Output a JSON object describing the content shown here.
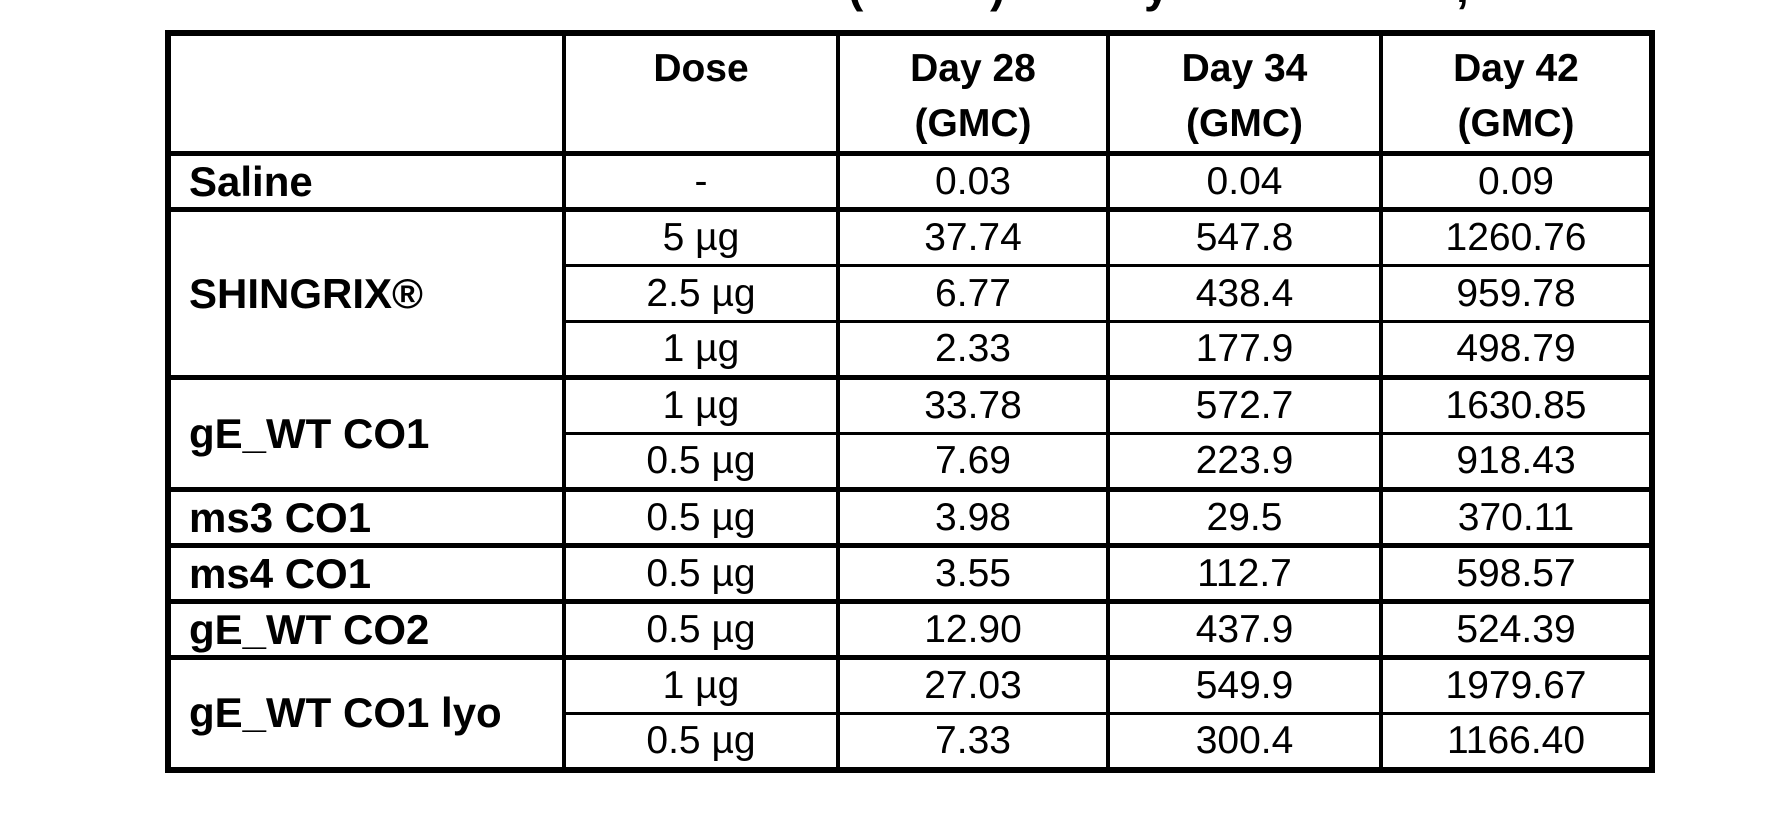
{
  "page": {
    "background_color": "#ffffff",
    "text_color": "#000000",
    "border_color": "#000000"
  },
  "clipped_caption": {
    "fragments": [
      "(",
      ")",
      "y",
      ","
    ]
  },
  "table": {
    "headers": {
      "col0": {
        "line1": "",
        "line2": ""
      },
      "col1": {
        "line1": "Dose",
        "line2": ""
      },
      "col2": {
        "line1": "Day 28",
        "line2": "(GMC)"
      },
      "col3": {
        "line1": "Day 34",
        "line2": "(GMC)"
      },
      "col4": {
        "line1": "Day 42",
        "line2": "(GMC)"
      }
    },
    "groups": [
      {
        "label": "Saline",
        "rows": [
          {
            "dose": "-",
            "day28": "0.03",
            "day34": "0.04",
            "day42": "0.09"
          }
        ]
      },
      {
        "label": "SHINGRIX®",
        "rows": [
          {
            "dose": "5 µg",
            "day28": "37.74",
            "day34": "547.8",
            "day42": "1260.76"
          },
          {
            "dose": "2.5 µg",
            "day28": "6.77",
            "day34": "438.4",
            "day42": "959.78"
          },
          {
            "dose": "1 µg",
            "day28": "2.33",
            "day34": "177.9",
            "day42": "498.79"
          }
        ]
      },
      {
        "label": "gE_WT CO1",
        "rows": [
          {
            "dose": "1 µg",
            "day28": "33.78",
            "day34": "572.7",
            "day42": "1630.85"
          },
          {
            "dose": "0.5 µg",
            "day28": "7.69",
            "day34": "223.9",
            "day42": "918.43"
          }
        ]
      },
      {
        "label": "ms3 CO1",
        "rows": [
          {
            "dose": "0.5 µg",
            "day28": "3.98",
            "day34": "29.5",
            "day42": "370.11"
          }
        ]
      },
      {
        "label": "ms4 CO1",
        "rows": [
          {
            "dose": "0.5 µg",
            "day28": "3.55",
            "day34": "112.7",
            "day42": "598.57"
          }
        ]
      },
      {
        "label": "gE_WT CO2",
        "rows": [
          {
            "dose": "0.5 µg",
            "day28": "12.90",
            "day34": "437.9",
            "day42": "524.39"
          }
        ]
      },
      {
        "label": "gE_WT CO1 lyo",
        "rows": [
          {
            "dose": "1 µg",
            "day28": "27.03",
            "day34": "549.9",
            "day42": "1979.67"
          },
          {
            "dose": "0.5 µg",
            "day28": "7.33",
            "day34": "300.4",
            "day42": "1166.40"
          }
        ]
      }
    ]
  }
}
